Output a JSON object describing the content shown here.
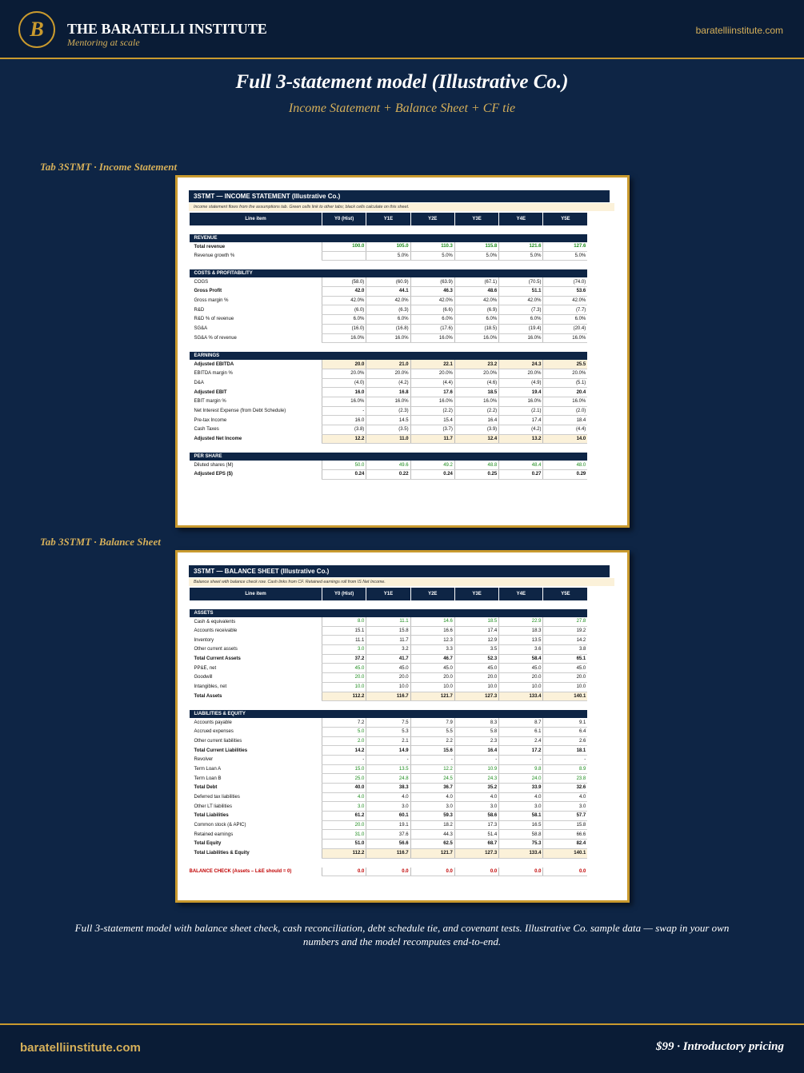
{
  "header": {
    "logo": "B",
    "brand": "THE BARATELLI INSTITUTE",
    "tagline": "Mentoring at scale",
    "site": "baratelliinstitute.com"
  },
  "title": "Full 3-statement model  (Illustrative Co.)",
  "subtitle": "Income Statement + Balance Sheet + CF tie",
  "is": {
    "tab": "Tab 3STMT · Income Statement",
    "title": "3STMT — INCOME STATEMENT (Illustrative Co.)",
    "note": "Income statement flows from the assumptions tab. Green cells link to other tabs; black cells calculate on this sheet.",
    "headers": [
      "Line item",
      "Y0 (Hist)",
      "Y1E",
      "Y2E",
      "Y3E",
      "Y4E",
      "Y5E"
    ],
    "sections": [
      {
        "title": "REVENUE",
        "rows": [
          [
            "Total revenue",
            "100.0",
            "105.0",
            "110.3",
            "115.8",
            "121.6",
            "127.6"
          ],
          [
            "Revenue growth %",
            null,
            "5.0%",
            "5.0%",
            "5.0%",
            "5.0%",
            "5.0%"
          ]
        ]
      },
      {
        "title": "COSTS & PROFITABILITY",
        "rows": [
          [
            "COGS",
            "(58.0)",
            "(60.9)",
            "(63.9)",
            "(67.1)",
            "(70.5)",
            "(74.0)"
          ],
          [
            "Gross Profit",
            "42.0",
            "44.1",
            "46.3",
            "48.6",
            "51.1",
            "53.6"
          ],
          [
            "Gross margin %",
            "42.0%",
            "42.0%",
            "42.0%",
            "42.0%",
            "42.0%",
            "42.0%"
          ],
          [
            "R&D",
            "(6.0)",
            "(6.3)",
            "(6.6)",
            "(6.9)",
            "(7.3)",
            "(7.7)"
          ],
          [
            "R&D % of revenue",
            "6.0%",
            "6.0%",
            "6.0%",
            "6.0%",
            "6.0%",
            "6.0%"
          ],
          [
            "SG&A",
            "(16.0)",
            "(16.8)",
            "(17.6)",
            "(18.5)",
            "(19.4)",
            "(20.4)"
          ],
          [
            "SG&A % of revenue",
            "16.0%",
            "16.0%",
            "16.0%",
            "16.0%",
            "16.0%",
            "16.0%"
          ]
        ]
      },
      {
        "title": "EARNINGS",
        "rows": [
          [
            "Adjusted EBITDA",
            "20.0",
            "21.0",
            "22.1",
            "23.2",
            "24.3",
            "25.5"
          ],
          [
            "EBITDA margin %",
            "20.0%",
            "20.0%",
            "20.0%",
            "20.0%",
            "20.0%",
            "20.0%"
          ],
          [
            "D&A",
            "(4.0)",
            "(4.2)",
            "(4.4)",
            "(4.6)",
            "(4.9)",
            "(5.1)"
          ],
          [
            "Adjusted EBIT",
            "16.0",
            "16.8",
            "17.6",
            "18.5",
            "19.4",
            "20.4"
          ],
          [
            "EBIT margin %",
            "16.0%",
            "16.0%",
            "16.0%",
            "16.0%",
            "16.0%",
            "16.0%"
          ],
          [
            "Net Interest Expense (from Debt Schedule)",
            "-",
            "(2.3)",
            "(2.2)",
            "(2.2)",
            "(2.1)",
            "(2.0)"
          ],
          [
            "Pre-tax Income",
            "16.0",
            "14.5",
            "15.4",
            "16.4",
            "17.4",
            "18.4"
          ],
          [
            "Cash Taxes",
            "(3.8)",
            "(3.5)",
            "(3.7)",
            "(3.9)",
            "(4.2)",
            "(4.4)"
          ],
          [
            "Adjusted Net Income",
            "12.2",
            "11.0",
            "11.7",
            "12.4",
            "13.2",
            "14.0"
          ]
        ]
      },
      {
        "title": "PER SHARE",
        "rows": [
          [
            "Diluted shares (M)",
            "50.0",
            "49.6",
            "49.2",
            "48.8",
            "48.4",
            "48.0"
          ],
          [
            "Adjusted EPS ($)",
            "0.24",
            "0.22",
            "0.24",
            "0.25",
            "0.27",
            "0.29"
          ]
        ]
      }
    ]
  },
  "bs": {
    "tab": "Tab 3STMT · Balance Sheet",
    "title": "3STMT — BALANCE SHEET (Illustrative Co.)",
    "note": "Balance sheet with balance check row. Cash links from CF. Retained earnings roll from IS Net Income.",
    "headers": [
      "Line item",
      "Y0 (Hist)",
      "Y1E",
      "Y2E",
      "Y3E",
      "Y4E",
      "Y5E"
    ],
    "sections": [
      {
        "title": "ASSETS",
        "rows": [
          [
            "Cash & equivalents",
            "8.0",
            "11.1",
            "14.6",
            "18.5",
            "22.9",
            "27.8"
          ],
          [
            "Accounts receivable",
            "15.1",
            "15.8",
            "16.6",
            "17.4",
            "18.3",
            "19.2"
          ],
          [
            "Inventory",
            "11.1",
            "11.7",
            "12.3",
            "12.9",
            "13.5",
            "14.2"
          ],
          [
            "Other current assets",
            "3.0",
            "3.2",
            "3.3",
            "3.5",
            "3.6",
            "3.8"
          ],
          [
            "Total Current Assets",
            "37.2",
            "41.7",
            "46.7",
            "52.3",
            "58.4",
            "65.1"
          ],
          [
            "PP&E, net",
            "45.0",
            "45.0",
            "45.0",
            "45.0",
            "45.0",
            "45.0"
          ],
          [
            "Goodwill",
            "20.0",
            "20.0",
            "20.0",
            "20.0",
            "20.0",
            "20.0"
          ],
          [
            "Intangibles, net",
            "10.0",
            "10.0",
            "10.0",
            "10.0",
            "10.0",
            "10.0"
          ],
          [
            "Total Assets",
            "112.2",
            "116.7",
            "121.7",
            "127.3",
            "133.4",
            "140.1"
          ]
        ]
      },
      {
        "title": "LIABILITIES & EQUITY",
        "rows": [
          [
            "Accounts payable",
            "7.2",
            "7.5",
            "7.9",
            "8.3",
            "8.7",
            "9.1"
          ],
          [
            "Accrued expenses",
            "5.0",
            "5.3",
            "5.5",
            "5.8",
            "6.1",
            "6.4"
          ],
          [
            "Other current liabilities",
            "2.0",
            "2.1",
            "2.2",
            "2.3",
            "2.4",
            "2.6"
          ],
          [
            "Total Current Liabilities",
            "14.2",
            "14.9",
            "15.6",
            "16.4",
            "17.2",
            "18.1"
          ],
          [
            "Revolver",
            "-",
            "-",
            "-",
            "-",
            "-",
            "-"
          ],
          [
            "Term Loan A",
            "15.0",
            "13.5",
            "12.2",
            "10.9",
            "9.8",
            "8.9"
          ],
          [
            "Term Loan B",
            "25.0",
            "24.8",
            "24.5",
            "24.3",
            "24.0",
            "23.8"
          ],
          [
            "Total Debt",
            "40.0",
            "38.3",
            "36.7",
            "35.2",
            "33.9",
            "32.6"
          ],
          [
            "Deferred tax liabilities",
            "4.0",
            "4.0",
            "4.0",
            "4.0",
            "4.0",
            "4.0"
          ],
          [
            "Other LT liabilities",
            "3.0",
            "3.0",
            "3.0",
            "3.0",
            "3.0",
            "3.0"
          ],
          [
            "Total Liabilities",
            "61.2",
            "60.1",
            "59.3",
            "58.6",
            "58.1",
            "57.7"
          ],
          [
            "Common stock (& APIC)",
            "20.0",
            "19.1",
            "18.2",
            "17.3",
            "16.5",
            "15.8"
          ],
          [
            "Retained earnings",
            "31.0",
            "37.6",
            "44.3",
            "51.4",
            "58.8",
            "66.6"
          ],
          [
            "Total Equity",
            "51.0",
            "56.6",
            "62.5",
            "68.7",
            "75.3",
            "82.4"
          ],
          [
            "Total Liabilities & Equity",
            "112.2",
            "116.7",
            "121.7",
            "127.3",
            "133.4",
            "140.1"
          ]
        ]
      }
    ],
    "check": [
      "BALANCE CHECK (Assets – L&E should = 0)",
      "0.0",
      "0.0",
      "0.0",
      "0.0",
      "0.0",
      "0.0"
    ]
  },
  "caption": "Full 3-statement model with balance sheet check, cash reconciliation, debt schedule tie, and covenant tests. Illustrative Co. sample data — swap in your own numbers and the model recomputes end-to-end.",
  "footer": {
    "site": "baratelliinstitute.com",
    "offer": "$99  ·  Introductory pricing"
  }
}
